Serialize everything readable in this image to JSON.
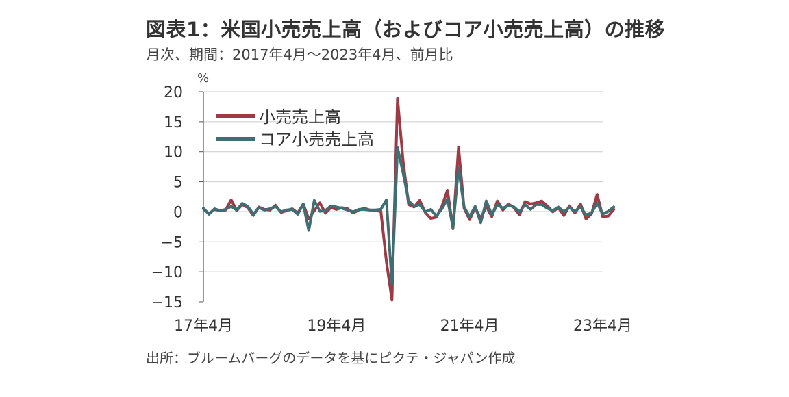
{
  "title": "図表1：米国小売売上高（およびコア小売売上高）の推移",
  "subtitle": "月次、期間：2017年4月～2023年4月、前月比",
  "source": "出所：ブルームバーグのデータを基にピクテ・ジャパン作成",
  "colors": {
    "retail": "#9E3A45",
    "core": "#3F6E73",
    "axis": "#555555",
    "grid": "#cccccc"
  },
  "chart_data": {
    "type": "line",
    "ylabel": "%",
    "ylim": [
      -15,
      20
    ],
    "yticks": [
      20,
      15,
      10,
      5,
      0,
      -5,
      -10,
      -15
    ],
    "ytick_labels": [
      "20",
      "15",
      "10",
      "5",
      "0",
      "−5",
      "−10",
      "−15"
    ],
    "xlim": [
      0,
      72
    ],
    "xticks": [
      {
        "x": 0,
        "label": "17年4月"
      },
      {
        "x": 24,
        "label": "19年4月"
      },
      {
        "x": 48,
        "label": "21年4月"
      },
      {
        "x": 72,
        "label": "23年4月"
      }
    ],
    "legend_position": "top-left",
    "series": [
      {
        "name": "小売売上高",
        "values": [
          0.5,
          -0.3,
          0.4,
          0.2,
          0.3,
          2.0,
          0.2,
          1.2,
          0.7,
          -0.6,
          0.8,
          0.4,
          0.3,
          1.1,
          -0.1,
          0.2,
          0.5,
          -0.2,
          1.3,
          -1.2,
          0.2,
          1.5,
          -0.2,
          0.7,
          0.4,
          0.7,
          0.5,
          -0.2,
          0.3,
          0.6,
          0.3,
          0.2,
          0.1,
          -8.3,
          -14.7,
          18.9,
          8.5,
          1.2,
          0.8,
          1.9,
          -0.1,
          -1.1,
          -0.9,
          0.9,
          3.6,
          -2.8,
          10.8,
          0.6,
          -1.3,
          0.7,
          -1.1,
          0.9,
          -0.8,
          1.8,
          0.3,
          1.3,
          0.7,
          -0.5,
          1.7,
          1.3,
          1.5,
          1.8,
          1.0,
          0.0,
          0.7,
          -0.6,
          1.0,
          -0.2,
          1.3,
          -1.2,
          -0.3,
          2.9,
          -0.8,
          -0.7,
          0.4
        ],
        "values_note": ""
      },
      {
        "name": "コア小売売上高",
        "values": [
          0.6,
          -0.4,
          0.5,
          0.2,
          0.4,
          0.9,
          0.3,
          1.4,
          0.9,
          -0.4,
          0.7,
          0.3,
          0.5,
          0.9,
          0.0,
          0.3,
          0.4,
          -0.4,
          1.3,
          -3.1,
          1.9,
          0.1,
          0.2,
          1.0,
          0.8,
          0.6,
          0.3,
          0.0,
          0.4,
          0.4,
          0.3,
          0.3,
          0.4,
          2.0,
          -12.0,
          10.7,
          6.5,
          1.8,
          0.9,
          1.2,
          0.0,
          0.4,
          -0.7,
          0.5,
          2.1,
          -2.6,
          7.4,
          0.8,
          -0.8,
          0.9,
          -1.8,
          1.8,
          -0.5,
          1.2,
          0.6,
          1.1,
          0.8,
          0.0,
          1.2,
          0.4,
          1.2,
          1.2,
          0.6,
          0.2,
          0.8,
          0.0,
          0.7,
          0.1,
          0.8,
          -0.5,
          -0.2,
          1.5,
          -0.4,
          0.1,
          0.8
        ]
      }
    ]
  }
}
